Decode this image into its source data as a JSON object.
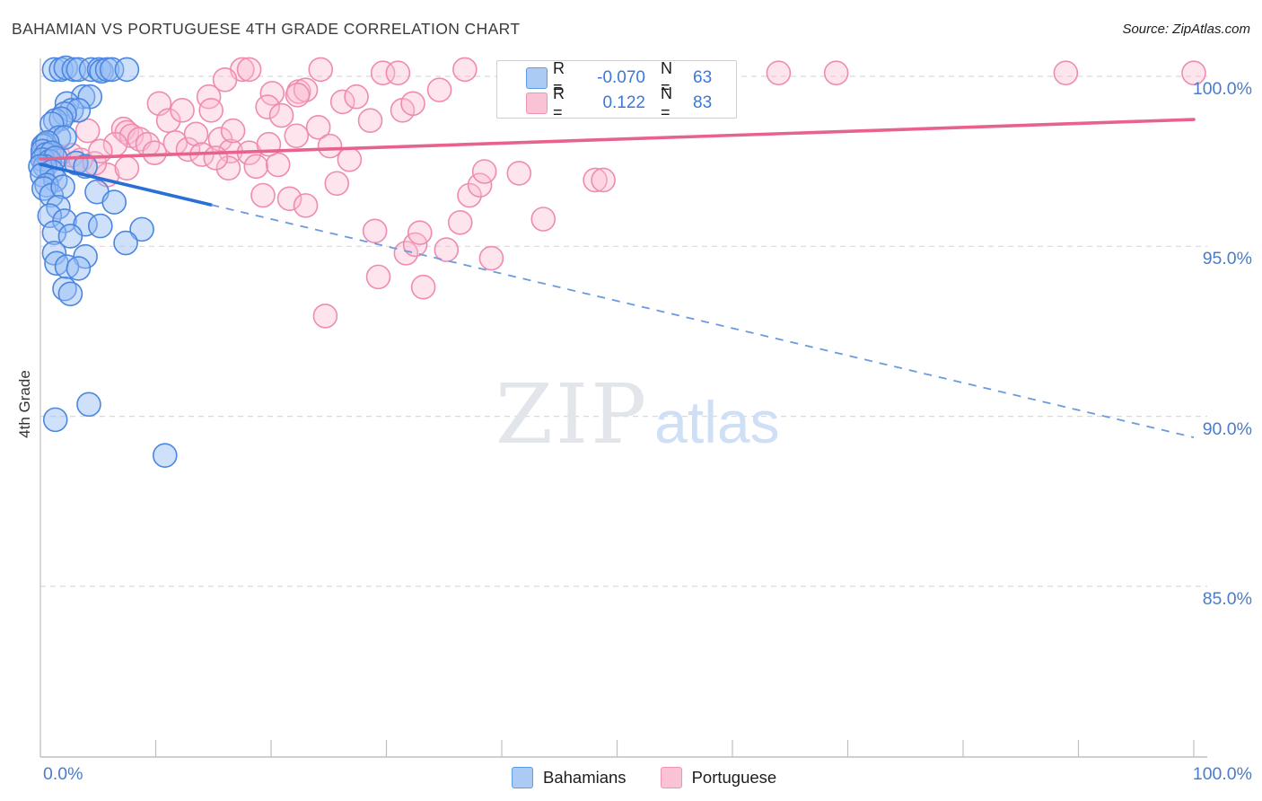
{
  "header": {
    "title": "BAHAMIAN VS PORTUGUESE 4TH GRADE CORRELATION CHART",
    "source": "Source: ZipAtlas.com"
  },
  "y_axis_title": "4th Grade",
  "watermark": {
    "zip": "ZIP",
    "atlas": "atlas"
  },
  "legend_box": {
    "rows": [
      {
        "series": "Bahamians",
        "r_label": "R =",
        "r_value": "-0.070",
        "n_label": "N =",
        "n_value": "63"
      },
      {
        "series": "Portuguese",
        "r_label": "R =",
        "r_value": "0.122",
        "n_label": "N =",
        "n_value": "83"
      }
    ]
  },
  "bottom_legend": {
    "items": [
      {
        "label": "Bahamians"
      },
      {
        "label": "Portuguese"
      }
    ]
  },
  "colors": {
    "axis_text": "#4a7cc9",
    "grid": "#d9d9d9",
    "axis_line": "#bfbfbf",
    "blue_stroke": "#4b86e0",
    "blue_fill": "rgba(148,188,243,0.45)",
    "blue_trend": "#2a6fd6",
    "blue_trend_dash": "#6b9ade",
    "pink_stroke": "#ef8bb0",
    "pink_fill": "rgba(249,188,209,0.40)",
    "pink_trend": "#e8638c"
  },
  "chart_data": {
    "type": "scatter",
    "title": "BAHAMIAN VS PORTUGUESE 4TH GRADE CORRELATION CHART",
    "ylabel": "4th Grade",
    "x_axis": {
      "min": 0,
      "max": 100,
      "tick_step_percent": 10,
      "label_left": "0.0%",
      "label_right": "100.0%"
    },
    "y_axis": {
      "ticks": [
        {
          "value": 100,
          "label": "100.0%"
        },
        {
          "value": 95,
          "label": "95.0%"
        },
        {
          "value": 90,
          "label": "90.0%"
        },
        {
          "value": 85,
          "label": "85.0%"
        }
      ]
    },
    "grid": "horizontal-dashed",
    "legend_position": "bottom-center",
    "series": [
      {
        "name": "Bahamians",
        "R": -0.07,
        "N": 63,
        "points": [
          [
            1.2,
            100.2
          ],
          [
            1.8,
            100.2
          ],
          [
            2.2,
            100.25
          ],
          [
            2.9,
            100.2
          ],
          [
            3.3,
            100.2
          ],
          [
            4.4,
            100.2
          ],
          [
            5.1,
            100.2
          ],
          [
            5.3,
            100.15
          ],
          [
            5.8,
            100.2
          ],
          [
            6.2,
            100.2
          ],
          [
            7.5,
            100.2
          ],
          [
            3.7,
            99.4
          ],
          [
            4.3,
            99.4
          ],
          [
            2.3,
            99.2
          ],
          [
            2.7,
            99.0
          ],
          [
            3.3,
            99.0
          ],
          [
            2.1,
            98.9
          ],
          [
            1.3,
            98.7
          ],
          [
            1.8,
            98.75
          ],
          [
            1.0,
            98.6
          ],
          [
            1.6,
            98.2
          ],
          [
            2.1,
            98.2
          ],
          [
            0.4,
            98.0
          ],
          [
            0.25,
            97.95
          ],
          [
            0.6,
            98.05
          ],
          [
            0.2,
            97.8
          ],
          [
            0.5,
            97.7
          ],
          [
            1.0,
            97.75
          ],
          [
            0.2,
            97.55
          ],
          [
            0.8,
            97.5
          ],
          [
            1.3,
            97.6
          ],
          [
            0.4,
            97.35
          ],
          [
            0.0,
            97.35
          ],
          [
            1.0,
            97.2
          ],
          [
            0.15,
            97.1
          ],
          [
            1.3,
            96.95
          ],
          [
            0.55,
            96.8
          ],
          [
            0.3,
            96.7
          ],
          [
            0.95,
            96.5
          ],
          [
            1.95,
            96.75
          ],
          [
            3.1,
            97.45
          ],
          [
            3.9,
            97.35
          ],
          [
            4.9,
            96.6
          ],
          [
            6.4,
            96.3
          ],
          [
            1.55,
            96.15
          ],
          [
            0.8,
            95.9
          ],
          [
            2.1,
            95.75
          ],
          [
            3.9,
            95.65
          ],
          [
            5.2,
            95.6
          ],
          [
            1.2,
            95.4
          ],
          [
            2.6,
            95.3
          ],
          [
            8.8,
            95.5
          ],
          [
            3.9,
            94.7
          ],
          [
            1.2,
            94.8
          ],
          [
            1.4,
            94.5
          ],
          [
            2.3,
            94.4
          ],
          [
            3.3,
            94.35
          ],
          [
            2.1,
            93.75
          ],
          [
            2.6,
            93.6
          ],
          [
            7.4,
            95.1
          ],
          [
            1.3,
            89.9
          ],
          [
            4.2,
            90.35
          ],
          [
            10.8,
            88.85
          ]
        ]
      },
      {
        "name": "Portuguese",
        "R": 0.122,
        "N": 83,
        "points": [
          [
            17.5,
            100.2
          ],
          [
            18.1,
            100.2
          ],
          [
            24.3,
            100.2
          ],
          [
            29.7,
            100.1
          ],
          [
            31.0,
            100.1
          ],
          [
            36.8,
            100.2
          ],
          [
            64.0,
            100.1
          ],
          [
            69.0,
            100.1
          ],
          [
            88.9,
            100.1
          ],
          [
            100.0,
            100.1
          ],
          [
            16.0,
            99.9
          ],
          [
            14.6,
            99.4
          ],
          [
            14.8,
            99.0
          ],
          [
            10.3,
            99.2
          ],
          [
            11.1,
            98.7
          ],
          [
            12.3,
            99.0
          ],
          [
            4.1,
            98.4
          ],
          [
            7.2,
            98.45
          ],
          [
            7.5,
            98.35
          ],
          [
            7.9,
            98.25
          ],
          [
            8.6,
            98.15
          ],
          [
            5.8,
            97.1
          ],
          [
            7.5,
            97.3
          ],
          [
            0.2,
            97.7
          ],
          [
            0.8,
            97.75
          ],
          [
            1.55,
            97.65
          ],
          [
            2.7,
            97.68
          ],
          [
            3.5,
            97.54
          ],
          [
            4.7,
            97.44
          ],
          [
            15.6,
            98.15
          ],
          [
            16.5,
            97.8
          ],
          [
            18.1,
            97.75
          ],
          [
            16.3,
            97.3
          ],
          [
            18.7,
            97.35
          ],
          [
            19.3,
            96.5
          ],
          [
            21.6,
            96.4
          ],
          [
            23.0,
            96.2
          ],
          [
            20.1,
            99.5
          ],
          [
            19.7,
            99.1
          ],
          [
            20.9,
            98.85
          ],
          [
            22.4,
            99.55
          ],
          [
            23.0,
            99.6
          ],
          [
            22.3,
            99.45
          ],
          [
            26.2,
            99.25
          ],
          [
            27.4,
            99.4
          ],
          [
            28.6,
            98.7
          ],
          [
            31.4,
            99.0
          ],
          [
            32.3,
            99.2
          ],
          [
            34.6,
            99.6
          ],
          [
            25.7,
            96.85
          ],
          [
            29.0,
            95.45
          ],
          [
            29.3,
            94.1
          ],
          [
            31.7,
            94.8
          ],
          [
            32.5,
            95.05
          ],
          [
            32.9,
            95.4
          ],
          [
            33.2,
            93.8
          ],
          [
            35.2,
            94.9
          ],
          [
            36.4,
            95.7
          ],
          [
            39.1,
            94.65
          ],
          [
            24.7,
            92.95
          ],
          [
            37.2,
            96.5
          ],
          [
            38.1,
            96.8
          ],
          [
            38.5,
            97.2
          ],
          [
            41.5,
            97.15
          ],
          [
            43.6,
            95.8
          ],
          [
            48.1,
            96.95
          ],
          [
            48.8,
            96.95
          ],
          [
            9.3,
            98.0
          ],
          [
            9.9,
            97.75
          ],
          [
            11.7,
            98.05
          ],
          [
            12.8,
            97.85
          ],
          [
            13.5,
            98.3
          ],
          [
            14.0,
            97.7
          ],
          [
            6.5,
            98.0
          ],
          [
            5.2,
            97.8
          ],
          [
            15.2,
            97.6
          ],
          [
            16.7,
            98.4
          ],
          [
            22.2,
            98.25
          ],
          [
            24.1,
            98.5
          ],
          [
            25.1,
            97.95
          ],
          [
            26.8,
            97.55
          ],
          [
            20.6,
            97.4
          ],
          [
            19.8,
            98.0
          ]
        ]
      }
    ],
    "trend_lines": [
      {
        "series": "Bahamians",
        "solid": [
          [
            0,
            97.41
          ],
          [
            14.8,
            96.22
          ]
        ],
        "dashed": [
          [
            14.8,
            96.22
          ],
          [
            100,
            89.38
          ]
        ]
      },
      {
        "series": "Portuguese",
        "solid": [
          [
            0,
            97.57
          ],
          [
            100,
            98.73
          ]
        ],
        "dashed": null
      }
    ]
  }
}
